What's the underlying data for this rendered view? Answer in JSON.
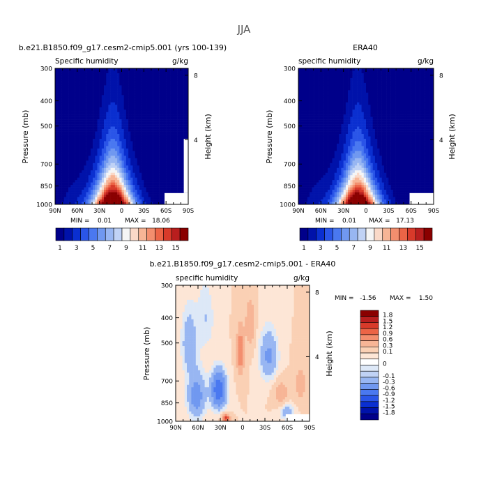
{
  "figure": {
    "title": "JJA"
  },
  "scales": {
    "pressure_ticks": [
      "300",
      "400",
      "500",
      "700",
      "850",
      "1000"
    ],
    "pressure_values": [
      300,
      400,
      500,
      700,
      850,
      1000
    ],
    "height_ticks": [
      "8",
      "4"
    ],
    "height_values_km": [
      8,
      4
    ],
    "lat_ticks": [
      "90N",
      "60N",
      "30N",
      "0",
      "30S",
      "60S",
      "90S"
    ],
    "lat_values": [
      90,
      60,
      30,
      0,
      -30,
      -60,
      -90
    ]
  },
  "colors": {
    "q_levels": [
      "#00008a",
      "#0012aa",
      "#0a2fd0",
      "#2a55e8",
      "#4a78f0",
      "#7098f0",
      "#98b6f2",
      "#c0d2f5",
      "#f5f5f5",
      "#fad9c8",
      "#f7b596",
      "#f38e6e",
      "#ec6446",
      "#d83a2a",
      "#b81e1e",
      "#8a0000"
    ],
    "diff_levels": [
      "#00008a",
      "#0012aa",
      "#0a2fd0",
      "#2a55e8",
      "#4a78f0",
      "#7098f0",
      "#98b6f2",
      "#c0d2f5",
      "#dde8f7",
      "#ffffff",
      "#fde6d6",
      "#fad0b4",
      "#f7b596",
      "#f38e6e",
      "#ec6446",
      "#d83a2a",
      "#b81e1e",
      "#8a0000"
    ]
  },
  "chart_data": [
    {
      "type": "heatmap",
      "title": "b.e21.B1850.f09_g17.cesm2-cmip5.001 (yrs 100-139)",
      "left_label": "Specific humidity",
      "right_label": "g/kg",
      "ylabel": "Pressure (mb)",
      "ylabel_right": "Height (km)",
      "min_label": "MIN =    0.01",
      "max_label": "MAX =   18.06",
      "colorbar_labels": [
        "1",
        "3",
        "5",
        "7",
        "9",
        "11",
        "13",
        "15"
      ],
      "min": 0.01,
      "max": 18.06
    },
    {
      "type": "heatmap",
      "title": "ERA40",
      "left_label": "specific humidity",
      "right_label": "g/kg",
      "ylabel": "Pressure (mb)",
      "ylabel_right": "Height (km)",
      "min_label": "MIN =    0.01",
      "max_label": "MAX =   17.13",
      "colorbar_labels": [
        "1",
        "3",
        "5",
        "7",
        "9",
        "11",
        "13",
        "15"
      ],
      "min": 0.01,
      "max": 17.13
    },
    {
      "type": "heatmap",
      "title": "b.e21.B1850.f09_g17.cesm2-cmip5.001 - ERA40",
      "left_label": "specific humidity",
      "right_label": "g/kg",
      "ylabel": "Pressure (mb)",
      "ylabel_right": "Height (km)",
      "min_label": "MIN =   -1.56",
      "max_label": "MAX =    1.50",
      "colorbar_labels": [
        "1.8",
        "1.5",
        "1.2",
        "0.9",
        "0.6",
        "0.3",
        "0.1",
        "0",
        "-0.1",
        "-0.3",
        "-0.6",
        "-0.9",
        "-1.2",
        "-1.5",
        "-1.8"
      ],
      "min": -1.56,
      "max": 1.5
    }
  ]
}
